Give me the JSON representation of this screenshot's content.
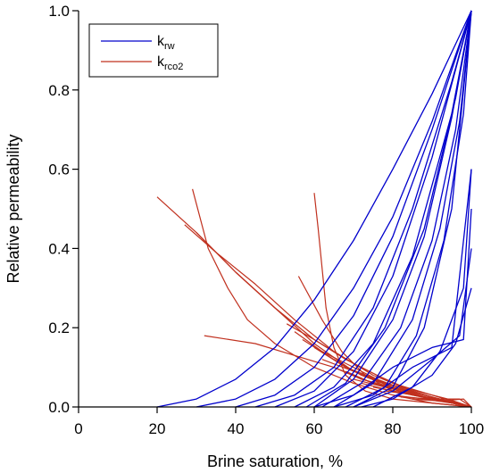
{
  "chart_data": {
    "type": "line",
    "xlabel": "Brine saturation, %",
    "ylabel": "Relative permeability",
    "xlim": [
      0,
      100
    ],
    "ylim": [
      0,
      1.0
    ],
    "x_ticks": [
      "0",
      "20",
      "40",
      "60",
      "80",
      "100"
    ],
    "y_ticks": [
      "0.0",
      "0.2",
      "0.4",
      "0.6",
      "0.8",
      "1.0"
    ],
    "x_tick_values": [
      0,
      20,
      40,
      60,
      80,
      100
    ],
    "y_tick_values": [
      0,
      0.2,
      0.4,
      0.6,
      0.8,
      1.0
    ],
    "grid": false,
    "legend": {
      "placement": "top-left",
      "entries": [
        {
          "main": "k",
          "sub": "rw",
          "color": "#0000cc"
        },
        {
          "main": "k",
          "sub": "rco2",
          "color": "#c0301e"
        }
      ]
    },
    "series": [
      {
        "group": "krw",
        "color": "#0000cc",
        "points": [
          [
            20,
            0
          ],
          [
            30,
            0.02
          ],
          [
            40,
            0.07
          ],
          [
            50,
            0.15
          ],
          [
            60,
            0.27
          ],
          [
            70,
            0.42
          ],
          [
            80,
            0.6
          ],
          [
            90,
            0.79
          ],
          [
            100,
            1.0
          ]
        ]
      },
      {
        "group": "krw",
        "color": "#0000cc",
        "points": [
          [
            30,
            0
          ],
          [
            40,
            0.02
          ],
          [
            50,
            0.07
          ],
          [
            60,
            0.16
          ],
          [
            70,
            0.3
          ],
          [
            80,
            0.48
          ],
          [
            90,
            0.72
          ],
          [
            100,
            1.0
          ]
        ]
      },
      {
        "group": "krw",
        "color": "#0000cc",
        "points": [
          [
            40,
            0
          ],
          [
            50,
            0.03
          ],
          [
            60,
            0.1
          ],
          [
            70,
            0.23
          ],
          [
            80,
            0.43
          ],
          [
            90,
            0.7
          ],
          [
            100,
            1.0
          ]
        ]
      },
      {
        "group": "krw",
        "color": "#0000cc",
        "points": [
          [
            45,
            0
          ],
          [
            55,
            0.03
          ],
          [
            65,
            0.1
          ],
          [
            75,
            0.25
          ],
          [
            85,
            0.5
          ],
          [
            95,
            0.82
          ],
          [
            100,
            1.0
          ]
        ]
      },
      {
        "group": "krw",
        "color": "#0000cc",
        "points": [
          [
            50,
            0
          ],
          [
            60,
            0.04
          ],
          [
            70,
            0.14
          ],
          [
            80,
            0.33
          ],
          [
            90,
            0.63
          ],
          [
            100,
            1.0
          ]
        ]
      },
      {
        "group": "krw",
        "color": "#0000cc",
        "points": [
          [
            55,
            0
          ],
          [
            65,
            0.05
          ],
          [
            75,
            0.16
          ],
          [
            85,
            0.38
          ],
          [
            95,
            0.74
          ],
          [
            100,
            1.0
          ]
        ]
      },
      {
        "group": "krw",
        "color": "#0000cc",
        "points": [
          [
            58,
            0
          ],
          [
            68,
            0.06
          ],
          [
            78,
            0.2
          ],
          [
            88,
            0.45
          ],
          [
            96,
            0.78
          ],
          [
            100,
            1.0
          ]
        ]
      },
      {
        "group": "krw",
        "color": "#0000cc",
        "points": [
          [
            60,
            0
          ],
          [
            70,
            0.07
          ],
          [
            80,
            0.22
          ],
          [
            88,
            0.43
          ],
          [
            95,
            0.73
          ],
          [
            100,
            1.0
          ]
        ]
      },
      {
        "group": "krw",
        "color": "#0000cc",
        "points": [
          [
            62,
            0
          ],
          [
            72,
            0.06
          ],
          [
            82,
            0.2
          ],
          [
            90,
            0.42
          ],
          [
            96,
            0.7
          ],
          [
            100,
            1.0
          ]
        ]
      },
      {
        "group": "krw",
        "color": "#0000cc",
        "points": [
          [
            65,
            0
          ],
          [
            75,
            0.06
          ],
          [
            85,
            0.22
          ],
          [
            92,
            0.45
          ],
          [
            97,
            0.72
          ],
          [
            100,
            1.0
          ]
        ]
      },
      {
        "group": "krw",
        "color": "#0000cc",
        "points": [
          [
            68,
            0
          ],
          [
            78,
            0.05
          ],
          [
            86,
            0.18
          ],
          [
            93,
            0.42
          ],
          [
            98,
            0.74
          ],
          [
            100,
            1.0
          ]
        ]
      },
      {
        "group": "krw",
        "color": "#0000cc",
        "points": [
          [
            70,
            0
          ],
          [
            80,
            0.05
          ],
          [
            88,
            0.2
          ],
          [
            95,
            0.5
          ],
          [
            100,
            1.0
          ]
        ]
      },
      {
        "group": "krw",
        "color": "#0000cc",
        "points": [
          [
            60,
            0
          ],
          [
            70,
            0.03
          ],
          [
            80,
            0.1
          ],
          [
            90,
            0.15
          ],
          [
            98,
            0.17
          ],
          [
            100,
            0.5
          ]
        ]
      },
      {
        "group": "krw",
        "color": "#0000cc",
        "points": [
          [
            65,
            0
          ],
          [
            75,
            0.03
          ],
          [
            85,
            0.1
          ],
          [
            95,
            0.15
          ],
          [
            100,
            0.6
          ]
        ]
      },
      {
        "group": "krw",
        "color": "#0000cc",
        "points": [
          [
            70,
            0
          ],
          [
            80,
            0.04
          ],
          [
            90,
            0.12
          ],
          [
            97,
            0.18
          ],
          [
            100,
            0.4
          ]
        ]
      },
      {
        "group": "krw",
        "color": "#0000cc",
        "points": [
          [
            75,
            0
          ],
          [
            85,
            0.05
          ],
          [
            92,
            0.14
          ],
          [
            98,
            0.3
          ],
          [
            100,
            0.6
          ]
        ]
      },
      {
        "group": "krw",
        "color": "#0000cc",
        "points": [
          [
            72,
            0
          ],
          [
            80,
            0.02
          ],
          [
            90,
            0.08
          ],
          [
            96,
            0.16
          ],
          [
            100,
            0.3
          ]
        ]
      },
      {
        "group": "krco2",
        "color": "#c0301e",
        "points": [
          [
            20,
            0.53
          ],
          [
            30,
            0.44
          ],
          [
            40,
            0.34
          ],
          [
            50,
            0.25
          ],
          [
            60,
            0.16
          ],
          [
            70,
            0.09
          ],
          [
            80,
            0.05
          ],
          [
            90,
            0.02
          ],
          [
            100,
            0
          ]
        ]
      },
      {
        "group": "krco2",
        "color": "#c0301e",
        "points": [
          [
            29,
            0.55
          ],
          [
            33,
            0.4
          ],
          [
            38,
            0.3
          ],
          [
            43,
            0.22
          ],
          [
            50,
            0.16
          ],
          [
            60,
            0.1
          ],
          [
            70,
            0.06
          ],
          [
            80,
            0.03
          ],
          [
            90,
            0.01
          ],
          [
            100,
            0
          ]
        ]
      },
      {
        "group": "krco2",
        "color": "#c0301e",
        "points": [
          [
            27,
            0.46
          ],
          [
            35,
            0.39
          ],
          [
            45,
            0.31
          ],
          [
            55,
            0.22
          ],
          [
            65,
            0.14
          ],
          [
            75,
            0.08
          ],
          [
            85,
            0.04
          ],
          [
            95,
            0.01
          ],
          [
            100,
            0
          ]
        ]
      },
      {
        "group": "krco2",
        "color": "#c0301e",
        "points": [
          [
            30,
            0.44
          ],
          [
            40,
            0.34
          ],
          [
            50,
            0.25
          ],
          [
            60,
            0.17
          ],
          [
            70,
            0.11
          ],
          [
            80,
            0.06
          ],
          [
            90,
            0.03
          ],
          [
            100,
            0
          ]
        ]
      },
      {
        "group": "krco2",
        "color": "#c0301e",
        "points": [
          [
            60,
            0.54
          ],
          [
            61,
            0.45
          ],
          [
            62,
            0.35
          ],
          [
            63,
            0.25
          ],
          [
            65,
            0.15
          ],
          [
            68,
            0.08
          ],
          [
            73,
            0.04
          ],
          [
            80,
            0.02
          ],
          [
            90,
            0.01
          ],
          [
            100,
            0
          ]
        ]
      },
      {
        "group": "krco2",
        "color": "#c0301e",
        "points": [
          [
            56,
            0.33
          ],
          [
            62,
            0.22
          ],
          [
            67,
            0.14
          ],
          [
            73,
            0.08
          ],
          [
            80,
            0.04
          ],
          [
            90,
            0.02
          ],
          [
            100,
            0
          ]
        ]
      },
      {
        "group": "krco2",
        "color": "#c0301e",
        "points": [
          [
            32,
            0.18
          ],
          [
            45,
            0.16
          ],
          [
            55,
            0.13
          ],
          [
            65,
            0.1
          ],
          [
            75,
            0.06
          ],
          [
            85,
            0.03
          ],
          [
            95,
            0.01
          ],
          [
            100,
            0
          ]
        ]
      },
      {
        "group": "krco2",
        "color": "#c0301e",
        "points": [
          [
            53,
            0.21
          ],
          [
            60,
            0.17
          ],
          [
            68,
            0.12
          ],
          [
            76,
            0.08
          ],
          [
            85,
            0.04
          ],
          [
            95,
            0.01
          ],
          [
            100,
            0
          ]
        ]
      },
      {
        "group": "krco2",
        "color": "#c0301e",
        "points": [
          [
            55,
            0.19
          ],
          [
            62,
            0.14
          ],
          [
            70,
            0.1
          ],
          [
            78,
            0.06
          ],
          [
            88,
            0.03
          ],
          [
            100,
            0
          ]
        ]
      },
      {
        "group": "krco2",
        "color": "#c0301e",
        "points": [
          [
            57,
            0.17
          ],
          [
            65,
            0.12
          ],
          [
            72,
            0.08
          ],
          [
            80,
            0.05
          ],
          [
            90,
            0.02
          ],
          [
            100,
            0
          ]
        ]
      },
      {
        "group": "krco2",
        "color": "#c0301e",
        "points": [
          [
            60,
            0.15
          ],
          [
            68,
            0.1
          ],
          [
            76,
            0.07
          ],
          [
            84,
            0.04
          ],
          [
            92,
            0.02
          ],
          [
            100,
            0
          ]
        ]
      },
      {
        "group": "krco2",
        "color": "#c0301e",
        "points": [
          [
            62,
            0.12
          ],
          [
            70,
            0.09
          ],
          [
            78,
            0.06
          ],
          [
            86,
            0.04
          ],
          [
            94,
            0.02
          ],
          [
            100,
            0
          ]
        ]
      },
      {
        "group": "krco2",
        "color": "#c0301e",
        "points": [
          [
            65,
            0.1
          ],
          [
            72,
            0.07
          ],
          [
            80,
            0.05
          ],
          [
            88,
            0.03
          ],
          [
            96,
            0.01
          ],
          [
            100,
            0
          ]
        ]
      },
      {
        "group": "krco2",
        "color": "#c0301e",
        "points": [
          [
            68,
            0.09
          ],
          [
            75,
            0.06
          ],
          [
            83,
            0.04
          ],
          [
            90,
            0.02
          ],
          [
            100,
            0
          ]
        ]
      },
      {
        "group": "krco2",
        "color": "#c0301e",
        "points": [
          [
            70,
            0.07
          ],
          [
            78,
            0.05
          ],
          [
            86,
            0.03
          ],
          [
            94,
            0.015
          ],
          [
            100,
            0
          ]
        ]
      },
      {
        "group": "krco2",
        "color": "#c0301e",
        "points": [
          [
            72,
            0.06
          ],
          [
            80,
            0.04
          ],
          [
            88,
            0.025
          ],
          [
            96,
            0.01
          ],
          [
            100,
            0
          ]
        ]
      },
      {
        "group": "krco2",
        "color": "#c0301e",
        "points": [
          [
            75,
            0.05
          ],
          [
            83,
            0.035
          ],
          [
            90,
            0.02
          ],
          [
            100,
            0
          ]
        ]
      },
      {
        "group": "krco2",
        "color": "#c0301e",
        "points": [
          [
            78,
            0.04
          ],
          [
            86,
            0.03
          ],
          [
            93,
            0.015
          ],
          [
            100,
            0
          ]
        ]
      },
      {
        "group": "krco2",
        "color": "#c0301e",
        "points": [
          [
            80,
            0.03
          ],
          [
            88,
            0.02
          ],
          [
            95,
            0.01
          ],
          [
            100,
            0
          ]
        ]
      },
      {
        "group": "krco2",
        "color": "#c0301e",
        "points": [
          [
            82,
            0.025
          ],
          [
            90,
            0.02
          ],
          [
            97,
            0.02
          ],
          [
            100,
            0
          ]
        ]
      },
      {
        "group": "krco2",
        "color": "#c0301e",
        "points": [
          [
            85,
            0.02
          ],
          [
            92,
            0.015
          ],
          [
            98,
            0.02
          ],
          [
            100,
            0
          ]
        ]
      }
    ]
  }
}
